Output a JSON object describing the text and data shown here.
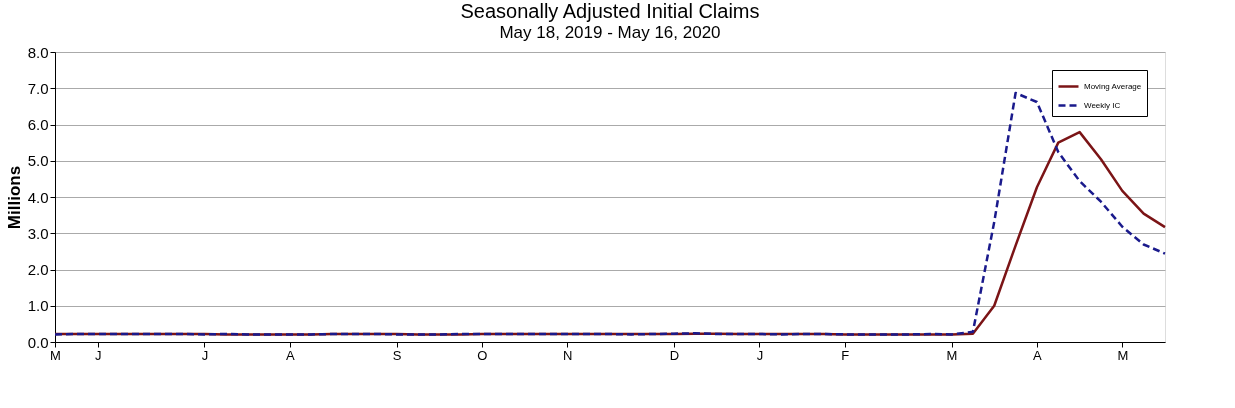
{
  "chart_data": {
    "type": "line",
    "title": "Seasonally Adjusted Initial Claims",
    "subtitle": "May 18, 2019 - May 16, 2020",
    "ylabel": "Millions",
    "categories": [
      "M",
      null,
      "J",
      null,
      null,
      null,
      null,
      "J",
      null,
      null,
      null,
      "A",
      null,
      null,
      null,
      null,
      "S",
      null,
      null,
      null,
      "O",
      null,
      null,
      null,
      "N",
      null,
      null,
      null,
      null,
      "D",
      null,
      null,
      null,
      "J",
      null,
      null,
      null,
      "F",
      null,
      null,
      null,
      null,
      "M",
      null,
      null,
      null,
      "A",
      null,
      null,
      null,
      "M",
      null,
      null
    ],
    "series": [
      {
        "name": "Moving Average",
        "color": "#7b1416",
        "line_style": "solid",
        "values": [
          0.22,
          0.22,
          0.22,
          0.22,
          0.22,
          0.22,
          0.22,
          0.22,
          0.21,
          0.21,
          0.21,
          0.21,
          0.21,
          0.22,
          0.22,
          0.22,
          0.22,
          0.21,
          0.21,
          0.21,
          0.22,
          0.22,
          0.22,
          0.22,
          0.22,
          0.22,
          0.22,
          0.22,
          0.22,
          0.22,
          0.23,
          0.23,
          0.22,
          0.22,
          0.22,
          0.22,
          0.22,
          0.21,
          0.21,
          0.21,
          0.21,
          0.21,
          0.21,
          0.23,
          1.0,
          2.66,
          4.27,
          5.5,
          5.79,
          5.04,
          4.17,
          3.54,
          3.17
        ]
      },
      {
        "name": "Weekly IC",
        "color": "#1a1a8c",
        "line_style": "dashed",
        "values": [
          0.21,
          0.22,
          0.22,
          0.22,
          0.22,
          0.22,
          0.22,
          0.21,
          0.22,
          0.21,
          0.21,
          0.21,
          0.21,
          0.22,
          0.22,
          0.22,
          0.21,
          0.21,
          0.21,
          0.22,
          0.22,
          0.22,
          0.22,
          0.22,
          0.22,
          0.22,
          0.22,
          0.21,
          0.22,
          0.23,
          0.24,
          0.22,
          0.22,
          0.22,
          0.21,
          0.22,
          0.22,
          0.21,
          0.21,
          0.21,
          0.21,
          0.22,
          0.21,
          0.28,
          3.31,
          6.87,
          6.62,
          5.24,
          4.44,
          3.87,
          3.18,
          2.69,
          2.44
        ]
      }
    ],
    "ylim": [
      0,
      8
    ],
    "yticks": [
      {
        "value": 0,
        "label": "0.0"
      },
      {
        "value": 1,
        "label": "1.0"
      },
      {
        "value": 2,
        "label": "2.0"
      },
      {
        "value": 3,
        "label": "3.0"
      },
      {
        "value": 4,
        "label": "4.0"
      },
      {
        "value": 5,
        "label": "5.0"
      },
      {
        "value": 6,
        "label": "6.0"
      },
      {
        "value": 7,
        "label": "7.0"
      },
      {
        "value": 8,
        "label": "8.0"
      }
    ],
    "grid": "y",
    "legend": "top right"
  }
}
